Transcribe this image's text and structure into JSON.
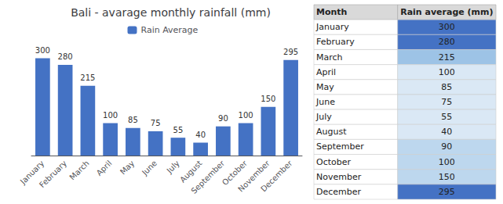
{
  "chart_data": [
    {
      "type": "bar",
      "title": "Bali - avarage monthly rainfall (mm)",
      "categories": [
        "January",
        "February",
        "March",
        "April",
        "May",
        "June",
        "July",
        "August",
        "September",
        "October",
        "November",
        "December"
      ],
      "series": [
        {
          "name": "Rain Average",
          "color": "#4472C4",
          "values": [
            300,
            280,
            215,
            100,
            85,
            75,
            55,
            40,
            90,
            100,
            150,
            295
          ]
        }
      ],
      "ylim": [
        0,
        340
      ],
      "grid": false,
      "legend": "top",
      "data_labels": true,
      "tick_labels": "x"
    },
    {
      "type": "table",
      "columns": [
        "Month",
        "Rain average (mm)"
      ],
      "categories": [
        "January",
        "February",
        "March",
        "April",
        "May",
        "June",
        "July",
        "August",
        "September",
        "October",
        "November",
        "December"
      ],
      "values": [
        300,
        280,
        215,
        100,
        85,
        75,
        55,
        40,
        90,
        100,
        150,
        295
      ],
      "colors": [
        "#4472C4",
        "#4472C4",
        "#9DC3E6",
        "#DAE8F5",
        "#DAE8F5",
        "#DAE8F5",
        "#DAE8F5",
        "#DAE8F5",
        "#BDD7EE",
        "#BDD7EE",
        "#BDD7EE",
        "#4472C4"
      ]
    }
  ]
}
